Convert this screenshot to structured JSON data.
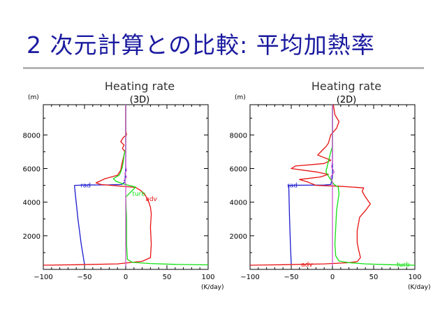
{
  "slide": {
    "title": "2 次元計算との比較: 平均加熱率"
  },
  "chart_data": [
    {
      "type": "line",
      "title": "Heating rate",
      "subtitle": "(3D)",
      "xlabel": "(K/day)",
      "ylabel": "(m)",
      "xlim": [
        -100,
        100
      ],
      "ylim": [
        0,
        9800
      ],
      "xticks": [
        -100,
        -50,
        0,
        50,
        100
      ],
      "yticks": [
        2000,
        4000,
        6000,
        8000
      ],
      "series": [
        {
          "name": "rad",
          "color": "#1a1ad0",
          "label_at": [
            -55,
            5000
          ],
          "points": [
            [
              -50,
              300
            ],
            [
              -54,
              1500
            ],
            [
              -58,
              3000
            ],
            [
              -62,
              4900
            ],
            [
              -62,
              5000
            ],
            [
              -50,
              5020
            ],
            [
              -20,
              5030
            ],
            [
              -5,
              5050
            ],
            [
              -1,
              5200
            ],
            [
              0,
              6000
            ],
            [
              0,
              9800
            ]
          ]
        },
        {
          "name": "adv",
          "color": "#e81010",
          "label_at": [
            24,
            4200
          ],
          "points": [
            [
              -100,
              250
            ],
            [
              -60,
              280
            ],
            [
              -10,
              330
            ],
            [
              20,
              480
            ],
            [
              30,
              700
            ],
            [
              31,
              1500
            ],
            [
              30,
              2500
            ],
            [
              31,
              3300
            ],
            [
              30,
              3700
            ],
            [
              28,
              4000
            ],
            [
              24,
              4400
            ],
            [
              18,
              4700
            ],
            [
              12,
              4880
            ],
            [
              -30,
              5050
            ],
            [
              -36,
              5150
            ],
            [
              -25,
              5400
            ],
            [
              -10,
              5600
            ],
            [
              -6,
              5900
            ],
            [
              -5,
              6200
            ],
            [
              -2,
              6800
            ],
            [
              -1,
              7000
            ],
            [
              -4,
              7200
            ],
            [
              -2,
              7400
            ],
            [
              -6,
              7600
            ],
            [
              -3,
              7850
            ],
            [
              1,
              8000
            ],
            [
              0,
              8300
            ],
            [
              0,
              9800
            ]
          ]
        },
        {
          "name": "turb",
          "color": "#10e010",
          "label_at": [
            8,
            4500
          ],
          "points": [
            [
              100,
              270
            ],
            [
              60,
              300
            ],
            [
              30,
              350
            ],
            [
              8,
              420
            ],
            [
              2,
              600
            ],
            [
              1,
              1500
            ],
            [
              1,
              3000
            ],
            [
              0,
              4300
            ],
            [
              6,
              4600
            ],
            [
              12,
              4900
            ],
            [
              4,
              5000
            ],
            [
              -4,
              5100
            ],
            [
              -12,
              5250
            ],
            [
              -15,
              5400
            ],
            [
              -8,
              5600
            ],
            [
              -6,
              5800
            ],
            [
              -4,
              6100
            ],
            [
              -3,
              6400
            ],
            [
              -2,
              6800
            ],
            [
              0,
              7200
            ],
            [
              0,
              9800
            ]
          ]
        },
        {
          "name": "",
          "color": "#cc55cc",
          "points": [
            [
              0,
              200
            ],
            [
              0,
              5100
            ],
            [
              -2,
              5300
            ],
            [
              1,
              5500
            ],
            [
              -1,
              5700
            ],
            [
              1,
              5900
            ],
            [
              0,
              6100
            ],
            [
              0,
              9800
            ]
          ]
        }
      ]
    },
    {
      "type": "line",
      "title": "Heating rate",
      "subtitle": "(2D)",
      "xlabel": "(K/day)",
      "ylabel": "(m)",
      "xlim": [
        -100,
        100
      ],
      "ylim": [
        0,
        9800
      ],
      "xticks": [
        -100,
        -50,
        0,
        50,
        100
      ],
      "yticks": [
        2000,
        4000,
        6000,
        8000
      ],
      "series": [
        {
          "name": "rad",
          "color": "#1a1ad0",
          "label_at": [
            -55,
            5000
          ],
          "points": [
            [
              -50,
              300
            ],
            [
              -51,
              1500
            ],
            [
              -52,
              3000
            ],
            [
              -53,
              4900
            ],
            [
              -53,
              5000
            ],
            [
              -40,
              5010
            ],
            [
              -10,
              5020
            ],
            [
              -2,
              5050
            ],
            [
              0,
              5500
            ],
            [
              0,
              9800
            ]
          ]
        },
        {
          "name": "adv",
          "color": "#e81010",
          "label_at": [
            -38,
            300
          ],
          "points": [
            [
              -100,
              250
            ],
            [
              -60,
              280
            ],
            [
              -10,
              330
            ],
            [
              20,
              400
            ],
            [
              30,
              460
            ],
            [
              34,
              700
            ],
            [
              32,
              1100
            ],
            [
              30,
              1600
            ],
            [
              30,
              2300
            ],
            [
              33,
              3100
            ],
            [
              40,
              3500
            ],
            [
              46,
              3900
            ],
            [
              40,
              4300
            ],
            [
              36,
              4650
            ],
            [
              38,
              4850
            ],
            [
              8,
              4950
            ],
            [
              -20,
              5000
            ],
            [
              -30,
              5200
            ],
            [
              -40,
              5350
            ],
            [
              -15,
              5500
            ],
            [
              -5,
              5650
            ],
            [
              -20,
              5800
            ],
            [
              -50,
              6000
            ],
            [
              -45,
              6150
            ],
            [
              -10,
              6300
            ],
            [
              -2,
              6500
            ],
            [
              -18,
              6800
            ],
            [
              -12,
              7100
            ],
            [
              -8,
              7300
            ],
            [
              -5,
              7500
            ],
            [
              -2,
              8000
            ],
            [
              5,
              8400
            ],
            [
              8,
              8800
            ],
            [
              3,
              9200
            ],
            [
              1,
              9800
            ]
          ]
        },
        {
          "name": "turb",
          "color": "#10e010",
          "label_at": [
            78,
            300
          ],
          "points": [
            [
              100,
              250
            ],
            [
              70,
              280
            ],
            [
              40,
              330
            ],
            [
              20,
              400
            ],
            [
              8,
              500
            ],
            [
              4,
              800
            ],
            [
              3,
              1500
            ],
            [
              4,
              2500
            ],
            [
              5,
              3500
            ],
            [
              8,
              4500
            ],
            [
              7,
              4900
            ],
            [
              2,
              5050
            ],
            [
              -3,
              5400
            ],
            [
              -8,
              5800
            ],
            [
              -6,
              6200
            ],
            [
              -4,
              6600
            ],
            [
              -2,
              7000
            ],
            [
              0,
              7300
            ],
            [
              0,
              9800
            ]
          ]
        },
        {
          "name": "",
          "color": "#cc55cc",
          "points": [
            [
              0,
              200
            ],
            [
              0,
              5200
            ],
            [
              -2,
              5500
            ],
            [
              2,
              5800
            ],
            [
              -1,
              6100
            ],
            [
              0,
              6400
            ],
            [
              0,
              9800
            ]
          ]
        }
      ]
    }
  ]
}
